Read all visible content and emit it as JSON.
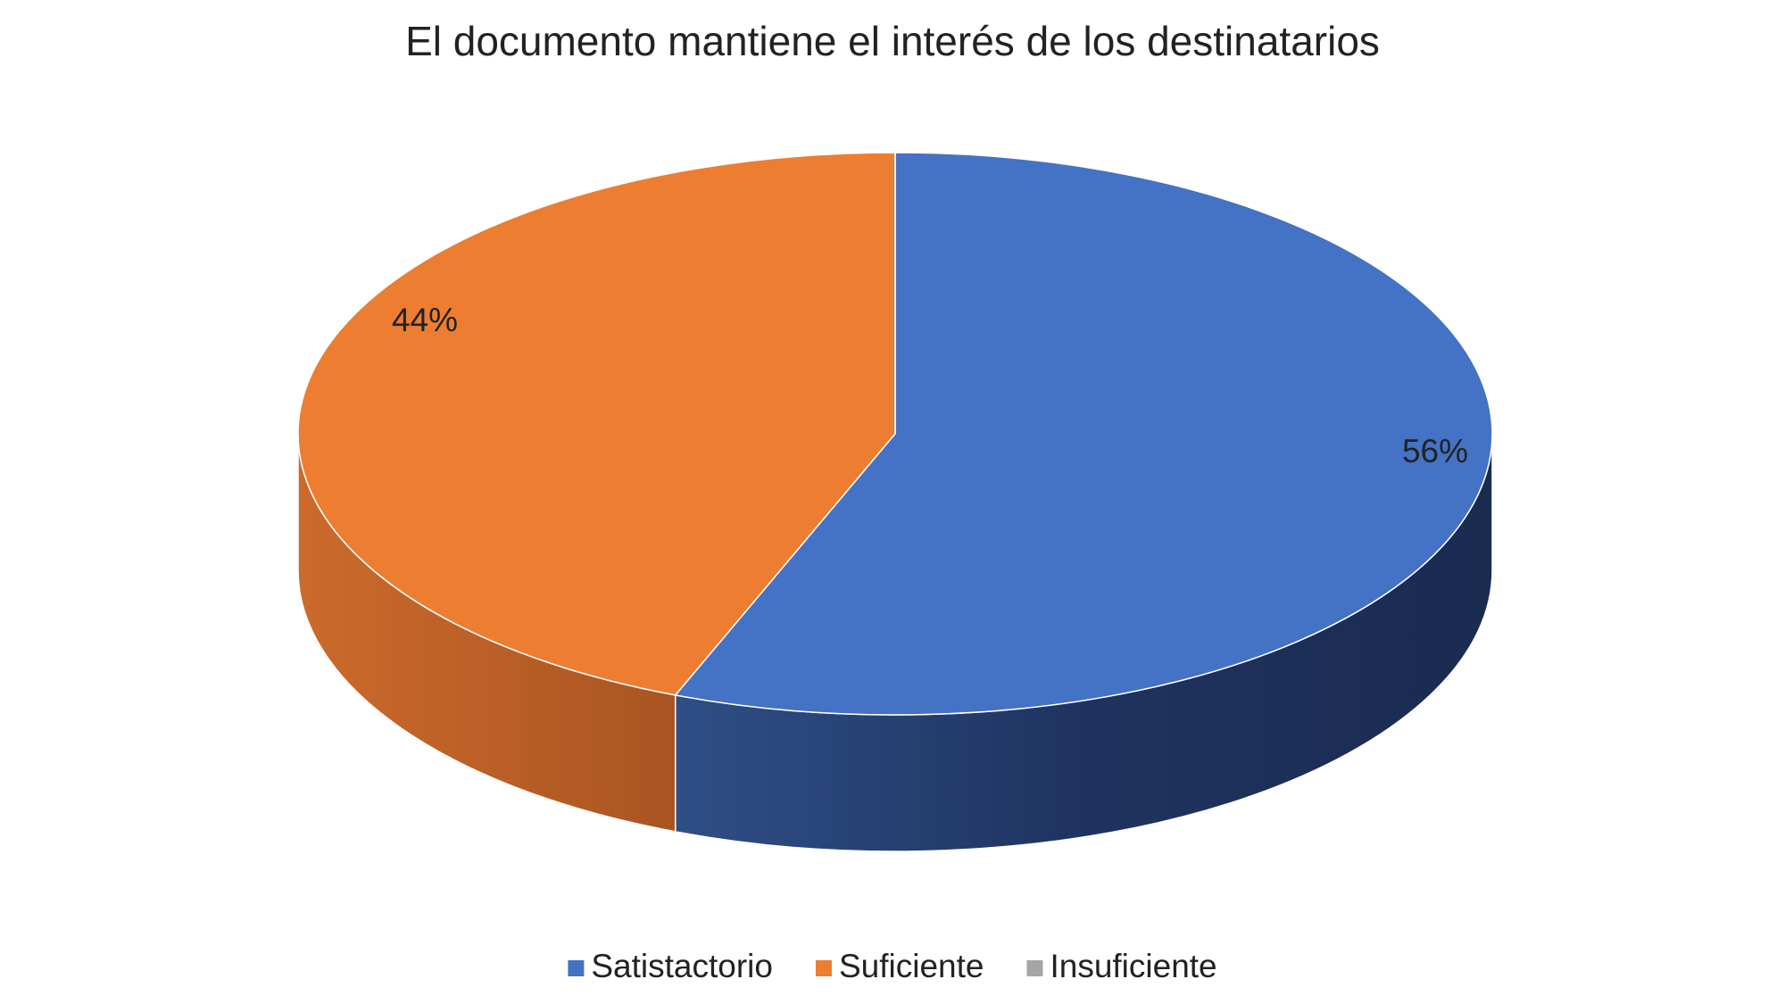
{
  "chart_data": {
    "type": "pie",
    "title": "El documento mantiene el interés de los destinatarios",
    "categories": [
      "Satistactorio",
      "Suficiente",
      "Insuficiente"
    ],
    "values": [
      56,
      44,
      0
    ],
    "value_labels": [
      "56%",
      "44%",
      null
    ],
    "colors": [
      "#4472c4",
      "#ed7d31",
      "#a5a5a5"
    ],
    "legend": "bottom"
  }
}
